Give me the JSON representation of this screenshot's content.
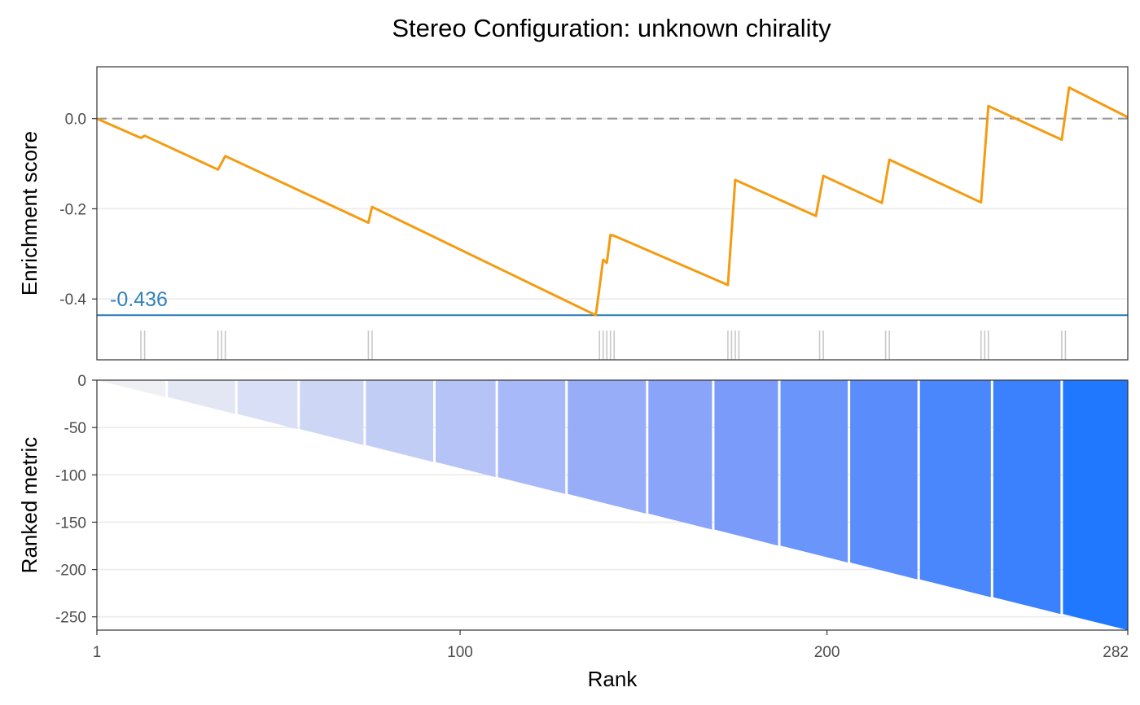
{
  "chart_data": [
    {
      "type": "line",
      "title": "Stereo Configuration: unknown chirality",
      "ylabel": "Enrichment score",
      "ylim": [
        -0.535,
        0.115
      ],
      "yticks": [
        0.0,
        -0.2,
        -0.4
      ],
      "ytick_labels": [
        "0.0",
        "-0.2",
        "-0.4"
      ],
      "xlim": [
        1,
        282
      ],
      "grid": "horizontal",
      "series": [
        {
          "x": [
            1,
            13,
            14,
            34,
            36,
            75,
            76,
            137,
            139,
            140,
            141,
            142,
            173,
            175,
            197,
            199,
            215,
            217,
            242,
            244,
            264,
            266,
            282
          ],
          "values": [
            0.0,
            -0.043,
            -0.038,
            -0.113,
            -0.083,
            -0.231,
            -0.196,
            -0.436,
            -0.313,
            -0.32,
            -0.258,
            -0.26,
            -0.369,
            -0.136,
            -0.216,
            -0.127,
            -0.187,
            -0.091,
            -0.186,
            0.028,
            -0.047,
            0.069,
            0.003
          ],
          "color": "#F39C12"
        }
      ],
      "zero_line": {
        "y": 0.0,
        "style": "dashed",
        "color": "#999999"
      },
      "min_line": {
        "y": -0.436,
        "color": "#3182bd"
      },
      "annotations": [
        {
          "text": "-0.436",
          "x": 5,
          "y": -0.4,
          "color": "#3182bd"
        }
      ],
      "hit_ranks": [
        13,
        14,
        34,
        35,
        36,
        75,
        76,
        138,
        139,
        140,
        141,
        142,
        173,
        174,
        175,
        176,
        198,
        199,
        216,
        217,
        242,
        243,
        244,
        264,
        265
      ]
    },
    {
      "type": "area",
      "ylabel": "Ranked metric",
      "xlabel": "Rank",
      "ylim": [
        -264,
        0
      ],
      "yticks": [
        0,
        -50,
        -100,
        -150,
        -200,
        -250
      ],
      "ytick_labels": [
        "0",
        "-50",
        "-100",
        "-150",
        "-200",
        "-250"
      ],
      "xticks": [
        1,
        100,
        200,
        282
      ],
      "xtick_labels": [
        "1",
        "100",
        "200",
        "282"
      ],
      "xlim": [
        1,
        282
      ],
      "grid": "horizontal",
      "metric_line": {
        "x": [
          1,
          282
        ],
        "y": [
          0,
          -264
        ]
      },
      "bands": [
        {
          "from": 1,
          "to": 20,
          "color": "#eef0f3"
        },
        {
          "from": 20,
          "to": 39,
          "color": "#e3e7f4"
        },
        {
          "from": 39,
          "to": 56,
          "color": "#d9dff6"
        },
        {
          "from": 56,
          "to": 74,
          "color": "#ced6f6"
        },
        {
          "from": 74,
          "to": 93,
          "color": "#c2cdf6"
        },
        {
          "from": 93,
          "to": 110,
          "color": "#b5c3f7"
        },
        {
          "from": 110,
          "to": 129,
          "color": "#a7b9f8"
        },
        {
          "from": 129,
          "to": 151,
          "color": "#97adf8"
        },
        {
          "from": 151,
          "to": 169,
          "color": "#89a4f9"
        },
        {
          "from": 169,
          "to": 187,
          "color": "#7b9bfa"
        },
        {
          "from": 187,
          "to": 206,
          "color": "#6a95fa"
        },
        {
          "from": 206,
          "to": 225,
          "color": "#5a8dfb"
        },
        {
          "from": 225,
          "to": 245,
          "color": "#4a86fc"
        },
        {
          "from": 245,
          "to": 264,
          "color": "#3b80fd"
        },
        {
          "from": 264,
          "to": 282,
          "color": "#1f78ff"
        }
      ]
    }
  ]
}
